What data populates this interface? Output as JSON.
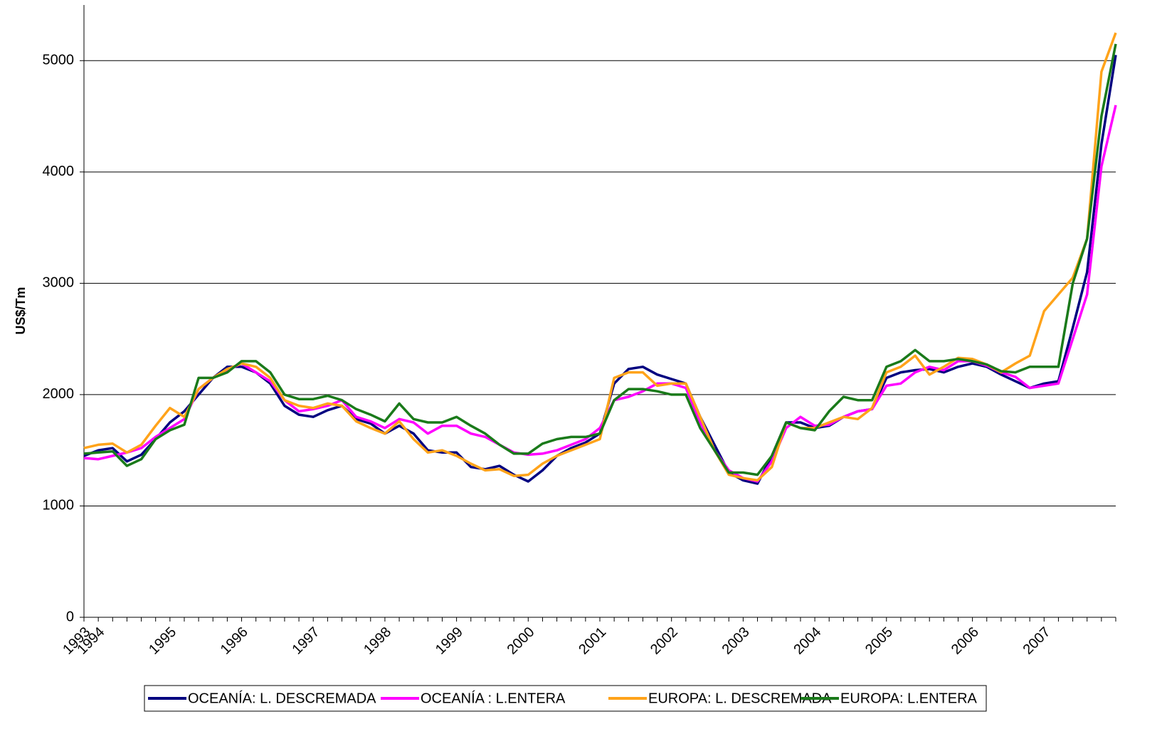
{
  "chart_data": {
    "type": "line",
    "y_label": "US$/Tm",
    "categories": [
      "1993",
      "1994",
      null,
      null,
      null,
      null,
      "1995",
      null,
      null,
      null,
      null,
      "1996",
      null,
      null,
      null,
      null,
      "1997",
      null,
      null,
      null,
      null,
      "1998",
      null,
      null,
      null,
      null,
      "1999",
      null,
      null,
      null,
      null,
      "2000",
      null,
      null,
      null,
      null,
      "2001",
      null,
      null,
      null,
      null,
      "2002",
      null,
      null,
      null,
      null,
      "2003",
      null,
      null,
      null,
      null,
      "2004",
      null,
      null,
      null,
      null,
      "2005",
      null,
      null,
      null,
      null,
      null,
      "2006",
      null,
      null,
      null,
      null,
      "2007",
      null,
      null,
      null,
      null,
      null
    ],
    "series": [
      {
        "name": "OCEANÍA: L. DESCREMADA",
        "color": "#000080",
        "values": [
          1450,
          1500,
          1520,
          1400,
          1460,
          1600,
          1750,
          1850,
          2000,
          2150,
          2250,
          2250,
          2200,
          2100,
          1900,
          1820,
          1800,
          1860,
          1900,
          1780,
          1740,
          1650,
          1720,
          1650,
          1500,
          1480,
          1480,
          1350,
          1330,
          1360,
          1280,
          1220,
          1320,
          1450,
          1520,
          1570,
          1650,
          2100,
          2230,
          2250,
          2180,
          2140,
          2100,
          1800,
          1550,
          1300,
          1230,
          1200,
          1450,
          1750,
          1750,
          1700,
          1720,
          1800,
          1850,
          1870,
          2150,
          2200,
          2220,
          2230,
          2200,
          2250,
          2280,
          2250,
          2180,
          2120,
          2060,
          2100,
          2120,
          2600,
          3100,
          4250,
          5050
        ]
      },
      {
        "name": "OCEANÍA : L.ENTERA",
        "color": "#ff00ff",
        "values": [
          1430,
          1420,
          1450,
          1480,
          1520,
          1620,
          1700,
          1780,
          2050,
          2150,
          2220,
          2280,
          2200,
          2120,
          1950,
          1850,
          1870,
          1900,
          1950,
          1800,
          1760,
          1700,
          1780,
          1750,
          1650,
          1720,
          1720,
          1650,
          1620,
          1550,
          1480,
          1460,
          1470,
          1500,
          1550,
          1600,
          1700,
          1950,
          1980,
          2030,
          2100,
          2100,
          2060,
          1750,
          1500,
          1320,
          1250,
          1220,
          1400,
          1700,
          1800,
          1720,
          1730,
          1800,
          1850,
          1870,
          2080,
          2100,
          2200,
          2250,
          2220,
          2300,
          2300,
          2260,
          2200,
          2160,
          2060,
          2080,
          2100,
          2500,
          2900,
          4050,
          4600
        ]
      },
      {
        "name": "EUROPA: L. DESCREMADA",
        "color": "#ffa31a",
        "values": [
          1520,
          1550,
          1560,
          1480,
          1550,
          1720,
          1880,
          1800,
          2050,
          2150,
          2230,
          2280,
          2250,
          2150,
          1950,
          1900,
          1880,
          1920,
          1900,
          1760,
          1700,
          1650,
          1760,
          1600,
          1480,
          1500,
          1450,
          1380,
          1320,
          1330,
          1270,
          1280,
          1380,
          1450,
          1500,
          1550,
          1600,
          2150,
          2200,
          2200,
          2080,
          2100,
          2100,
          1800,
          1500,
          1280,
          1250,
          1230,
          1350,
          1750,
          1700,
          1700,
          1750,
          1800,
          1780,
          1880,
          2200,
          2250,
          2350,
          2180,
          2250,
          2330,
          2320,
          2270,
          2200,
          2280,
          2350,
          2750,
          2900,
          3050,
          3400,
          4900,
          5250
        ]
      },
      {
        "name": "EUROPA: L.ENTERA",
        "color": "#1a7a1a",
        "values": [
          1470,
          1480,
          1490,
          1360,
          1420,
          1600,
          1680,
          1730,
          2150,
          2150,
          2200,
          2300,
          2300,
          2200,
          2000,
          1960,
          1960,
          1990,
          1950,
          1870,
          1820,
          1760,
          1920,
          1780,
          1750,
          1750,
          1800,
          1720,
          1650,
          1550,
          1470,
          1470,
          1560,
          1600,
          1620,
          1620,
          1650,
          1950,
          2050,
          2050,
          2030,
          2000,
          2000,
          1700,
          1500,
          1300,
          1300,
          1280,
          1450,
          1750,
          1700,
          1680,
          1850,
          1980,
          1950,
          1950,
          2250,
          2300,
          2400,
          2300,
          2300,
          2320,
          2300,
          2270,
          2210,
          2200,
          2250,
          2250,
          2250,
          3000,
          3400,
          4500,
          5150
        ]
      }
    ],
    "ylim": [
      0,
      5500
    ],
    "yticks": [
      0,
      1000,
      2000,
      3000,
      4000,
      5000
    ],
    "grid": true
  }
}
